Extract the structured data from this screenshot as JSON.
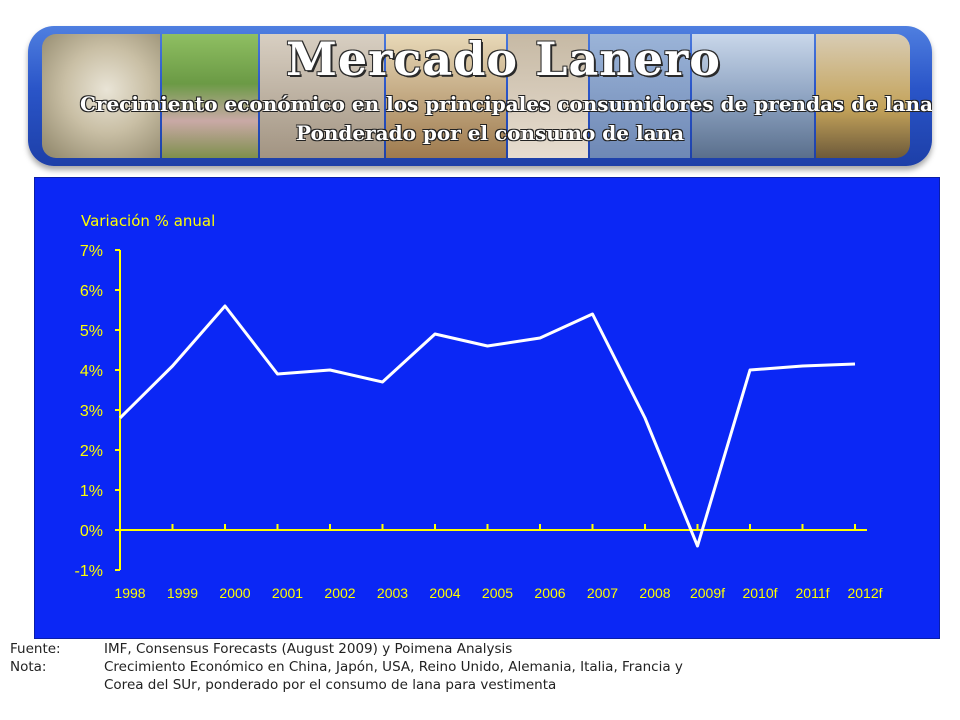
{
  "banner": {
    "title": "Mercado Lanero",
    "subtitle_line1": "Crecimiento económico en los principales consumidores de prendas de lana",
    "subtitle_line2": "Ponderado por el consumo de lana"
  },
  "colors": {
    "panel": "#0b27f5",
    "line": "#ffffff",
    "axis": "#ffff00",
    "text": "#ffff00"
  },
  "chart_data": {
    "type": "line",
    "ylabel": "Variación % anual",
    "xlabel": "",
    "ylim": [
      -1,
      7
    ],
    "yticks": [
      "7%",
      "6%",
      "5%",
      "4%",
      "3%",
      "2%",
      "1%",
      "0%",
      "-1%"
    ],
    "categories": [
      "1998",
      "1999",
      "2000",
      "2001",
      "2002",
      "2003",
      "2004",
      "2005",
      "2006",
      "2007",
      "2008",
      "2009f",
      "2010f",
      "2011f",
      "2012f"
    ],
    "series": [
      {
        "values": [
          2.8,
          4.1,
          5.6,
          3.9,
          4.0,
          3.7,
          4.9,
          4.6,
          4.8,
          5.4,
          2.8,
          -0.4,
          4.0,
          4.1,
          4.15
        ]
      }
    ],
    "grid": false,
    "legend": "none"
  },
  "notes": {
    "source_label": "Fuente:",
    "source_text": "IMF, Consensus Forecasts (August 2009) y Poimena Analysis",
    "note_label": "Nota:",
    "note_text": "Crecimiento Económico en China, Japón, USA, Reino Unido, Alemania, Italia, Francia y Corea del SUr, ponderado por el consumo de lana para vestimenta"
  }
}
